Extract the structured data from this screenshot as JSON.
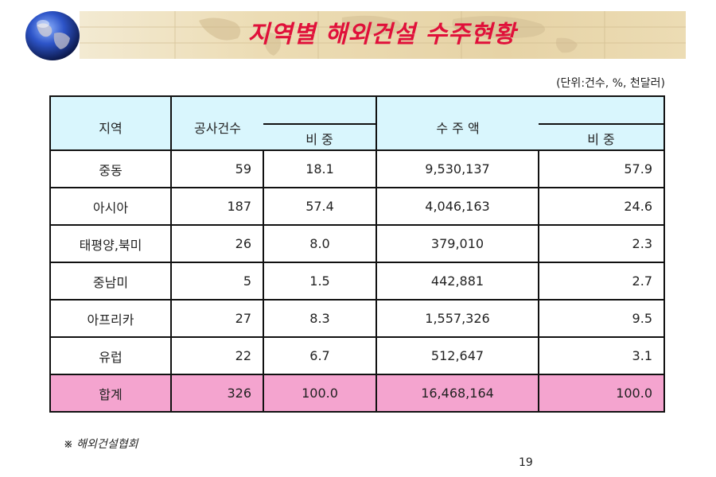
{
  "title": "지역별 해외건설 수주현황",
  "unit_note": "(단위:건수, %, 천달러)",
  "table": {
    "headers": {
      "region": "지역",
      "count": "공사건수",
      "count_share": "비 중",
      "amount": "수 주 액",
      "amount_share": "비 중"
    },
    "rows": [
      {
        "region": "중동",
        "count": "59",
        "count_share": "18.1",
        "amount": "9,530,137",
        "amount_share": "57.9"
      },
      {
        "region": "아시아",
        "count": "187",
        "count_share": "57.4",
        "amount": "4,046,163",
        "amount_share": "24.6"
      },
      {
        "region": "태평양,북미",
        "count": "26",
        "count_share": "8.0",
        "amount": "379,010",
        "amount_share": "2.3"
      },
      {
        "region": "중남미",
        "count": "5",
        "count_share": "1.5",
        "amount": "442,881",
        "amount_share": "2.7"
      },
      {
        "region": "아프리카",
        "count": "27",
        "count_share": "8.3",
        "amount": "1,557,326",
        "amount_share": "9.5"
      },
      {
        "region": "유럽",
        "count": "22",
        "count_share": "6.7",
        "amount": "512,647",
        "amount_share": "3.1"
      }
    ],
    "total": {
      "region": "합계",
      "count": "326",
      "count_share": "100.0",
      "amount": "16,468,164",
      "amount_share": "100.0"
    }
  },
  "source": "※ 해외건설협회",
  "page_number": "19",
  "colors": {
    "title": "#e0103a",
    "header_bg": "#d9f6fd",
    "total_bg": "#f4a4cf",
    "banner_bg": "#e6d3a6"
  },
  "icons": [
    "globe-icon",
    "world-map-watermark"
  ]
}
